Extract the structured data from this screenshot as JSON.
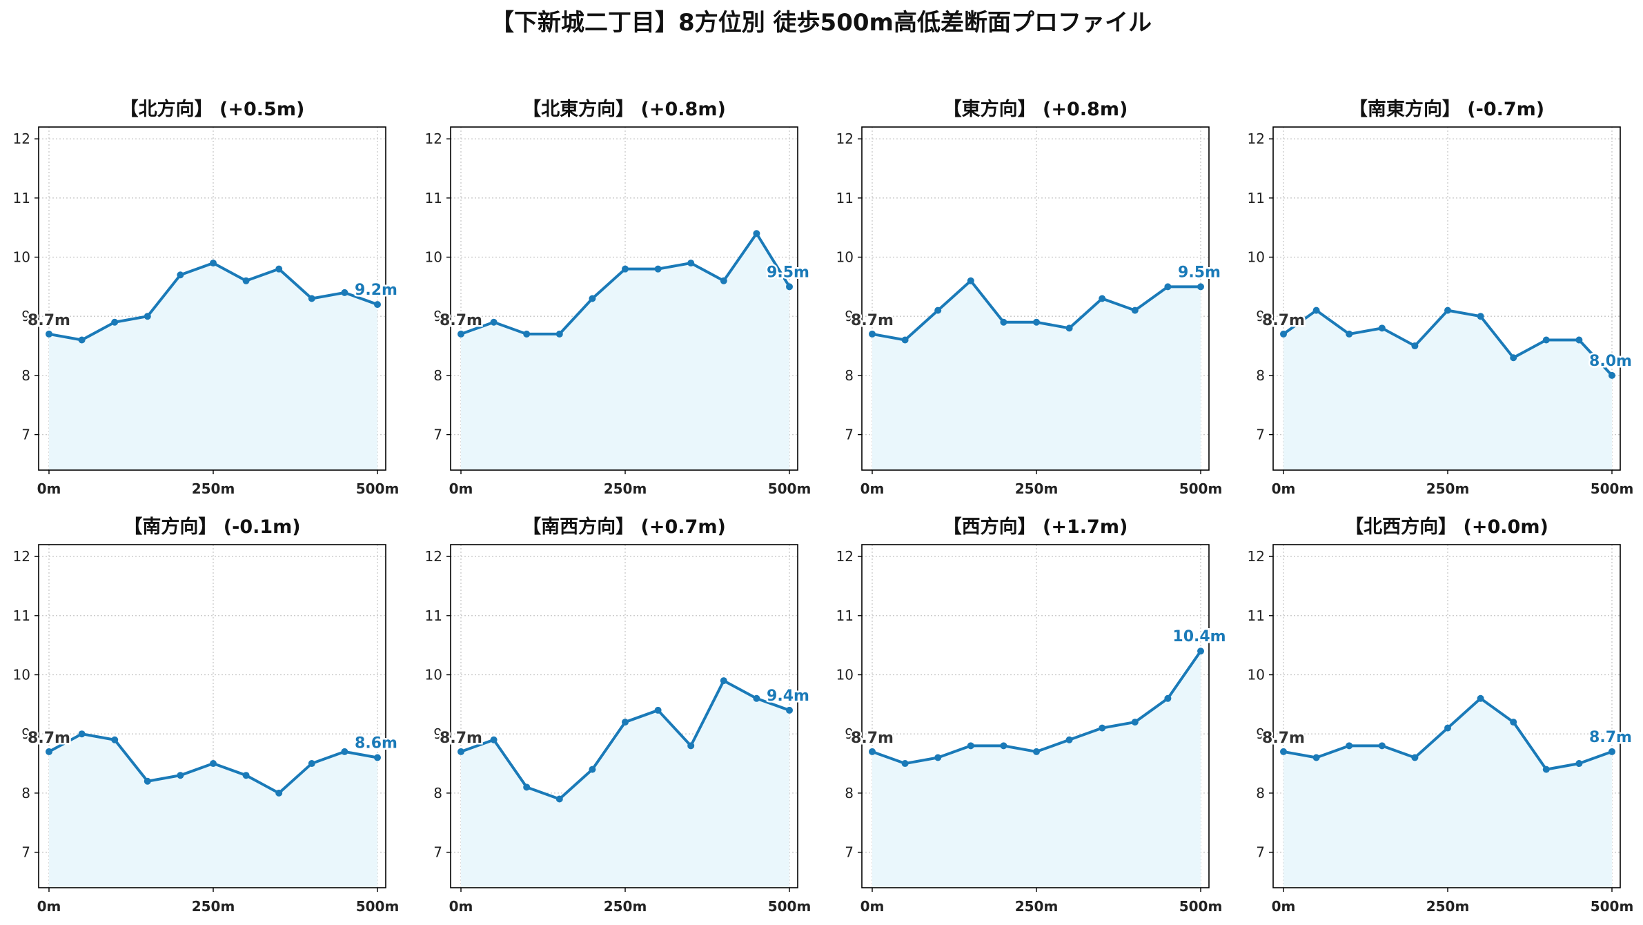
{
  "title": "【下新城二丁目】8方位別 徒歩500m高低差断面プロファイル",
  "colors": {
    "line": "#1a7ab8",
    "fill": "#eaf7fc",
    "grid": "#c8c8c8",
    "start_label": "#333333",
    "end_label": "#1a7ab8"
  },
  "chart_data": [
    {
      "type": "line",
      "title": "【北方向】 (+0.5m)",
      "x": [
        0,
        50,
        100,
        150,
        200,
        250,
        300,
        350,
        400,
        450,
        500
      ],
      "values": [
        8.7,
        8.6,
        8.9,
        9.0,
        9.7,
        9.9,
        9.6,
        9.8,
        9.3,
        9.4,
        9.2
      ],
      "start_label": "8.7m",
      "end_label": "9.2m",
      "xticks": [
        "0m",
        "250m",
        "500m"
      ],
      "yticks": [
        "7",
        "8",
        "9",
        "10",
        "11",
        "12"
      ],
      "ylim": [
        6.4,
        12.2
      ],
      "grid": true
    },
    {
      "type": "line",
      "title": "【北東方向】 (+0.8m)",
      "x": [
        0,
        50,
        100,
        150,
        200,
        250,
        300,
        350,
        400,
        450,
        500
      ],
      "values": [
        8.7,
        8.9,
        8.7,
        8.7,
        9.3,
        9.8,
        9.8,
        9.9,
        9.6,
        10.4,
        9.5
      ],
      "start_label": "8.7m",
      "end_label": "9.5m",
      "xticks": [
        "0m",
        "250m",
        "500m"
      ],
      "yticks": [
        "7",
        "8",
        "9",
        "10",
        "11",
        "12"
      ],
      "ylim": [
        6.4,
        12.2
      ],
      "grid": true
    },
    {
      "type": "line",
      "title": "【東方向】 (+0.8m)",
      "x": [
        0,
        50,
        100,
        150,
        200,
        250,
        300,
        350,
        400,
        450,
        500
      ],
      "values": [
        8.7,
        8.6,
        9.1,
        9.6,
        8.9,
        8.9,
        8.8,
        9.3,
        9.1,
        9.5,
        9.5
      ],
      "start_label": "8.7m",
      "end_label": "9.5m",
      "xticks": [
        "0m",
        "250m",
        "500m"
      ],
      "yticks": [
        "7",
        "8",
        "9",
        "10",
        "11",
        "12"
      ],
      "ylim": [
        6.4,
        12.2
      ],
      "grid": true
    },
    {
      "type": "line",
      "title": "【南東方向】 (-0.7m)",
      "x": [
        0,
        50,
        100,
        150,
        200,
        250,
        300,
        350,
        400,
        450,
        500
      ],
      "values": [
        8.7,
        9.1,
        8.7,
        8.8,
        8.5,
        9.1,
        9.0,
        8.3,
        8.6,
        8.6,
        8.0
      ],
      "start_label": "8.7m",
      "end_label": "8.0m",
      "xticks": [
        "0m",
        "250m",
        "500m"
      ],
      "yticks": [
        "7",
        "8",
        "9",
        "10",
        "11",
        "12"
      ],
      "ylim": [
        6.4,
        12.2
      ],
      "grid": true
    },
    {
      "type": "line",
      "title": "【南方向】 (-0.1m)",
      "x": [
        0,
        50,
        100,
        150,
        200,
        250,
        300,
        350,
        400,
        450,
        500
      ],
      "values": [
        8.7,
        9.0,
        8.9,
        8.2,
        8.3,
        8.5,
        8.3,
        8.0,
        8.5,
        8.7,
        8.6
      ],
      "start_label": "8.7m",
      "end_label": "8.6m",
      "xticks": [
        "0m",
        "250m",
        "500m"
      ],
      "yticks": [
        "7",
        "8",
        "9",
        "10",
        "11",
        "12"
      ],
      "ylim": [
        6.4,
        12.2
      ],
      "grid": true
    },
    {
      "type": "line",
      "title": "【南西方向】 (+0.7m)",
      "x": [
        0,
        50,
        100,
        150,
        200,
        250,
        300,
        350,
        400,
        450,
        500
      ],
      "values": [
        8.7,
        8.9,
        8.1,
        7.9,
        8.4,
        9.2,
        9.4,
        8.8,
        9.9,
        9.6,
        9.4
      ],
      "start_label": "8.7m",
      "end_label": "9.4m",
      "xticks": [
        "0m",
        "250m",
        "500m"
      ],
      "yticks": [
        "7",
        "8",
        "9",
        "10",
        "11",
        "12"
      ],
      "ylim": [
        6.4,
        12.2
      ],
      "grid": true
    },
    {
      "type": "line",
      "title": "【西方向】 (+1.7m)",
      "x": [
        0,
        50,
        100,
        150,
        200,
        250,
        300,
        350,
        400,
        450,
        500
      ],
      "values": [
        8.7,
        8.5,
        8.6,
        8.8,
        8.8,
        8.7,
        8.9,
        9.1,
        9.2,
        9.6,
        10.4
      ],
      "start_label": "8.7m",
      "end_label": "10.4m",
      "xticks": [
        "0m",
        "250m",
        "500m"
      ],
      "yticks": [
        "7",
        "8",
        "9",
        "10",
        "11",
        "12"
      ],
      "ylim": [
        6.4,
        12.2
      ],
      "grid": true
    },
    {
      "type": "line",
      "title": "【北西方向】 (+0.0m)",
      "x": [
        0,
        50,
        100,
        150,
        200,
        250,
        300,
        350,
        400,
        450,
        500
      ],
      "values": [
        8.7,
        8.6,
        8.8,
        8.8,
        8.6,
        9.1,
        9.6,
        9.2,
        8.4,
        8.5,
        8.7
      ],
      "start_label": "8.7m",
      "end_label": "8.7m",
      "xticks": [
        "0m",
        "250m",
        "500m"
      ],
      "yticks": [
        "7",
        "8",
        "9",
        "10",
        "11",
        "12"
      ],
      "ylim": [
        6.4,
        12.2
      ],
      "grid": true
    }
  ]
}
